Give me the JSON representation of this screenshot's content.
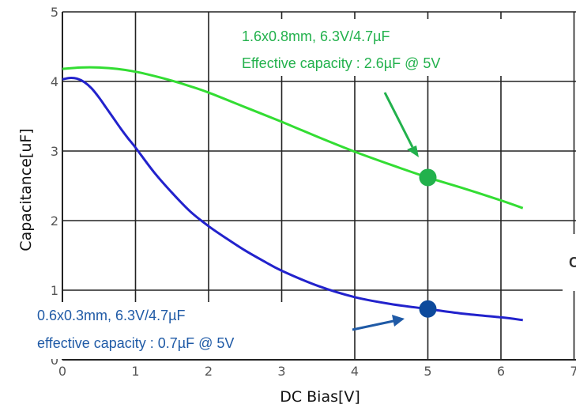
{
  "chart_data": {
    "type": "line",
    "xlabel": "DC Bias[V]",
    "ylabel": "Capacitance[uF]",
    "xlim": [
      0,
      7
    ],
    "ylim": [
      0,
      5
    ],
    "x_ticks": [
      "0",
      "1",
      "2",
      "3",
      "4",
      "5",
      "6",
      "7"
    ],
    "y_ticks": [
      "0",
      "1",
      "2",
      "3",
      "4",
      "5"
    ],
    "grid": true,
    "series": [
      {
        "color": "#33dd33",
        "x": [
          0,
          0.25,
          0.5,
          0.75,
          1,
          1.25,
          1.5,
          1.75,
          2,
          2.5,
          3,
          3.5,
          4,
          4.5,
          5,
          5.5,
          6,
          6.3
        ],
        "y": [
          4.18,
          4.2,
          4.2,
          4.18,
          4.14,
          4.08,
          4.01,
          3.93,
          3.84,
          3.63,
          3.42,
          3.2,
          2.99,
          2.8,
          2.62,
          2.46,
          2.29,
          2.18
        ]
      },
      {
        "color": "#2222cc",
        "x": [
          0,
          0.1,
          0.2,
          0.3,
          0.4,
          0.5,
          0.6,
          0.7,
          0.8,
          0.9,
          1,
          1.25,
          1.5,
          1.75,
          2,
          2.25,
          2.5,
          2.75,
          3,
          3.5,
          4,
          4.5,
          5,
          5.5,
          6,
          6.3
        ],
        "y": [
          4.03,
          4.05,
          4.04,
          3.99,
          3.9,
          3.77,
          3.62,
          3.47,
          3.32,
          3.18,
          3.05,
          2.7,
          2.4,
          2.13,
          1.92,
          1.74,
          1.57,
          1.42,
          1.28,
          1.06,
          0.9,
          0.8,
          0.73,
          0.66,
          0.61,
          0.57
        ]
      }
    ],
    "highlight_points": [
      {
        "x": 5,
        "y": 2.62,
        "color": "#22b14c"
      },
      {
        "x": 5,
        "y": 0.73,
        "color": "#0d4a9c"
      }
    ],
    "annotations": [
      {
        "lines": [
          "1.6x0.8mm, 6.3V/4.7µF",
          "Effective capacity : 2.6µF @ 5V"
        ],
        "color": "#22b14c"
      },
      {
        "lines": [
          "0.6x0.3mm, 6.3V/4.7µF",
          "effective capacity : 0.7µF @ 5V"
        ],
        "color": "#1f5aa6"
      }
    ],
    "clipped_text": "C"
  }
}
